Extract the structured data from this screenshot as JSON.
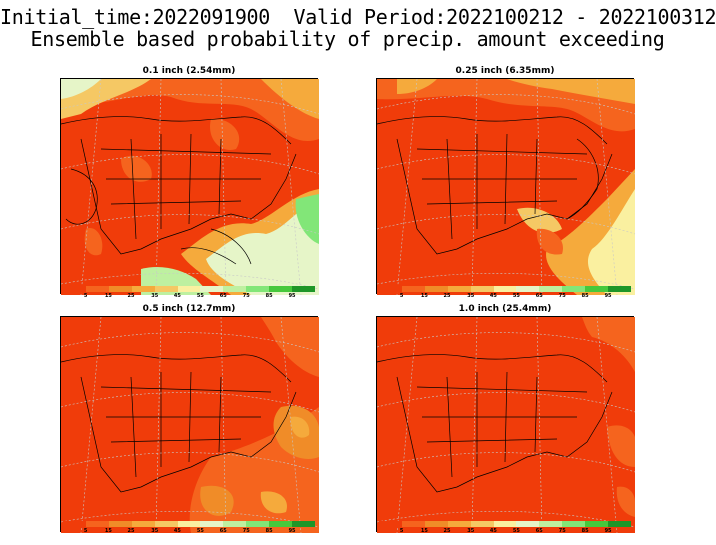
{
  "header": {
    "line1": "Initial_time:2022091900  Valid Period:2022100212 - 2022100312",
    "line2": "Ensemble based probability of precip. amount exceeding"
  },
  "colorbar": {
    "labels": [
      "5",
      "15",
      "25",
      "35",
      "45",
      "55",
      "65",
      "75",
      "85",
      "95"
    ],
    "colors": [
      "#f03c0a",
      "#f5641e",
      "#f08c28",
      "#f5aa3c",
      "#f5c864",
      "#faf0a0",
      "#e6f5c8",
      "#bef0a0",
      "#82e678",
      "#46c83c",
      "#1e9628"
    ]
  },
  "panels": [
    {
      "title": "0.1 inch (2.54mm)"
    },
    {
      "title": "0.25 inch (6.35mm)"
    },
    {
      "title": "0.5 inch (12.7mm)"
    },
    {
      "title": "1.0 inch (25.4mm)"
    }
  ]
}
